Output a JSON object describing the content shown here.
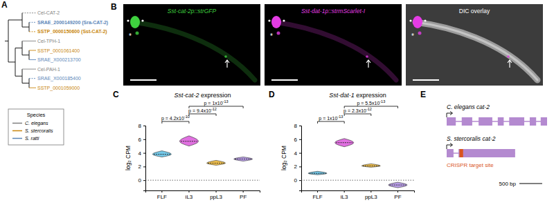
{
  "panel_labels": [
    "A",
    "B",
    "C",
    "D",
    "E"
  ],
  "tree": {
    "children": [
      {
        "children": [
          {
            "label": "Cel-CAT-2",
            "species": "C. elegans",
            "line_style": "dashed"
          },
          {
            "children": [
              {
                "label": "SRAE_2000149200 (Sra-CAT-2)",
                "species": "S. ratti",
                "line_style": "dashed",
                "highlight": true
              },
              {
                "label": "SSTP_0000150600 (Sst-CAT-2)",
                "species": "S. stercoralis",
                "line_style": "dashed",
                "highlight": true
              }
            ]
          }
        ]
      },
      {
        "children": [
          {
            "children": [
              {
                "label": "Cel-TPH-1",
                "species": "C. elegans",
                "line_style": "solid"
              },
              {
                "children": [
                  {
                    "label": "SSTP_0001061400",
                    "species": "S. stercoralis",
                    "line_style": "solid"
                  },
                  {
                    "label": "SRAE_X000213700",
                    "species": "S. ratti",
                    "line_style": "solid"
                  }
                ]
              }
            ]
          },
          {
            "children": [
              {
                "label": "Cel-PAH-1",
                "species": "C. elegans",
                "line_style": "solid"
              },
              {
                "children": [
                  {
                    "label": "SRAE_X000185400",
                    "species": "S. ratti",
                    "line_style": "dashed"
                  },
                  {
                    "label": "SSTP_0001059000",
                    "species": "S. stercoralis",
                    "line_style": "solid"
                  }
                ]
              }
            ]
          }
        ]
      }
    ]
  },
  "species_legend": {
    "title": "Species",
    "entries": [
      {
        "name": "C. elegans",
        "color": "#7f7f7f"
      },
      {
        "name": "S. stercoralis",
        "color": "#c8860d"
      },
      {
        "name": "S. ratti",
        "color": "#5b86b8"
      }
    ]
  },
  "micrographs": {
    "panels": [
      {
        "label": "Sst-cat-2p::strGFP",
        "color": "#3fd13f"
      },
      {
        "label": "Sst-dat-1p::strmScarlet-I",
        "color": "#e43ce4"
      },
      {
        "label": "DIC overlay",
        "color": "#ffffff"
      }
    ],
    "asterisk": "*"
  },
  "chart_data": [
    {
      "type": "violin",
      "title": "Sst-cat-2 expression",
      "y_label": "log₂ CPM",
      "categories": [
        "FLF",
        "iL3",
        "ppL3",
        "PF"
      ],
      "colors": [
        "#74c8e8",
        "#e070e0",
        "#f2c14e",
        "#b89de6"
      ],
      "values": [
        3.8,
        5.7,
        2.5,
        3.1
      ],
      "min": [
        3.4,
        5.0,
        2.2,
        2.8
      ],
      "max": [
        4.3,
        6.5,
        2.9,
        3.4
      ],
      "ylim": [
        -1.5,
        8
      ],
      "yticks": [
        0,
        2,
        4,
        6,
        8
      ],
      "comparisons": [
        {
          "from": 0,
          "to": 1,
          "label": "p = 4.2x10",
          "exponent": "-10"
        },
        {
          "from": 1,
          "to": 2,
          "label": "p = 9.4x10",
          "exponent": "-12"
        },
        {
          "from": 1,
          "to": 3,
          "label": "p = 1x10",
          "exponent": "-13"
        }
      ]
    },
    {
      "type": "violin",
      "title": "Sst-dat-1 expression",
      "y_label": "log₂ CPM",
      "categories": [
        "FLF",
        "iL3",
        "ppL3",
        "PF"
      ],
      "colors": [
        "#74c8e8",
        "#e070e0",
        "#f2c14e",
        "#b89de6"
      ],
      "values": [
        1.0,
        5.5,
        2.1,
        -0.7
      ],
      "min": [
        0.8,
        4.9,
        1.9,
        -1.1
      ],
      "max": [
        1.3,
        6.1,
        2.4,
        -0.3
      ],
      "ylim": [
        -1.5,
        8
      ],
      "yticks": [
        0,
        2,
        4,
        6,
        8
      ],
      "comparisons": [
        {
          "from": 0,
          "to": 1,
          "label": "p = 1x10",
          "exponent": "-13"
        },
        {
          "from": 1,
          "to": 2,
          "label": "p = 2.3x10",
          "exponent": "-12"
        },
        {
          "from": 1,
          "to": 3,
          "label": "p = 5.5x10",
          "exponent": "-13"
        }
      ]
    }
  ],
  "gene_models": {
    "bp_range": [
      0,
      2200
    ],
    "genes": [
      {
        "label": "C. elegans cat-2",
        "exons": [
          [
            0,
            200
          ],
          [
            330,
            560
          ],
          [
            700,
            1000
          ],
          [
            1120,
            1250
          ],
          [
            1370,
            1700
          ],
          [
            1820,
            1960
          ],
          [
            2060,
            2200
          ]
        ]
      },
      {
        "label": "S. stercoralis cat-2",
        "exons": [
          [
            0,
            150
          ],
          [
            260,
            1500
          ]
        ],
        "target": [
          280,
          360
        ]
      }
    ],
    "target_label": "CRISPR target site",
    "scale_bar": {
      "value": 500,
      "label": "500 bp"
    }
  }
}
